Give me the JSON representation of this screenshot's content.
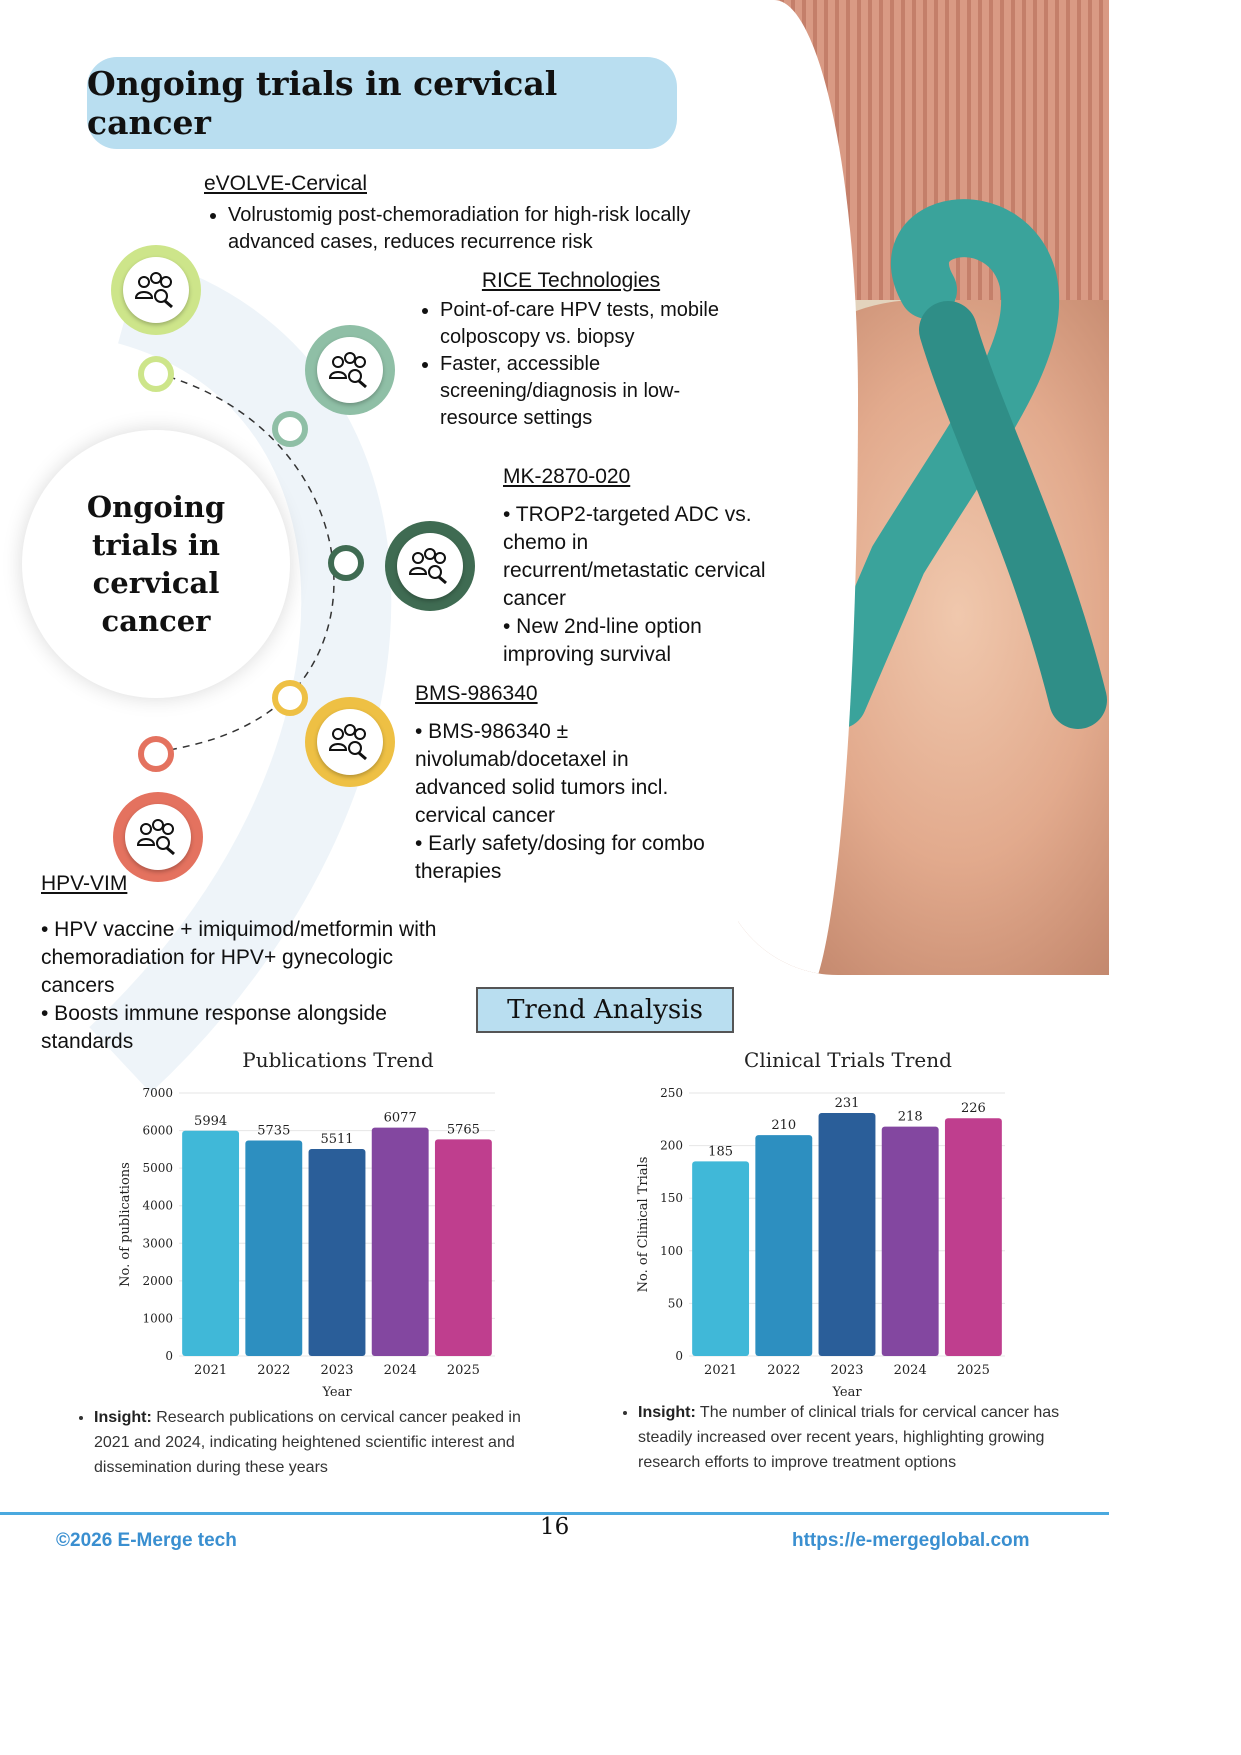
{
  "header": {
    "title": "Ongoing trials in cervical cancer"
  },
  "center": {
    "label": "Ongoing trials in cervical cancer"
  },
  "trials": {
    "evolve": {
      "name": "eVOLVE-Cervical",
      "bullets": [
        "Volrustomig post-chemoradiation for high-risk locally advanced cases, reduces recurrence risk"
      ]
    },
    "rice": {
      "name": "RICE Technologies",
      "bullets": [
        "Point-of-care HPV tests, mobile colposcopy vs. biopsy",
        "Faster, accessible screening/diagnosis in low-resource settings"
      ]
    },
    "mk": {
      "name": "MK-2870-020",
      "lines": [
        "• TROP2-targeted ADC vs. chemo in recurrent/metastatic cervical cancer",
        "• New 2nd-line option improving survival"
      ]
    },
    "bms": {
      "name": "BMS-986340",
      "lines": [
        "• BMS-986340 ± nivolumab/docetaxel in advanced solid tumors incl. cervical cancer",
        "• Early safety/dosing for combo therapies"
      ]
    },
    "hpv": {
      "name": "HPV-VIM",
      "lines": [
        "• HPV vaccine + imiquimod/metformin with chemoradiation for HPV+ gynecologic cancers",
        "• Boosts immune response alongside standards"
      ]
    }
  },
  "icons": {
    "trial": "people-search-icon"
  },
  "trend": {
    "title": "Trend Analysis"
  },
  "chart_data": [
    {
      "type": "bar",
      "title": "Publications Trend",
      "xlabel": "Year",
      "ylabel": "No. of publications",
      "categories": [
        "2021",
        "2022",
        "2023",
        "2024",
        "2025"
      ],
      "values": [
        5994,
        5735,
        5511,
        6077,
        5765
      ],
      "ylim": [
        0,
        7000
      ],
      "yticks": [
        0,
        1000,
        2000,
        3000,
        4000,
        5000,
        6000,
        7000
      ],
      "colors": [
        "#40b8d8",
        "#2d8fc0",
        "#2a5e99",
        "#8347a0",
        "#bf3e8e"
      ],
      "grid": true
    },
    {
      "type": "bar",
      "title": "Clinical Trials Trend",
      "xlabel": "Year",
      "ylabel": "No. of Clinical Trials",
      "categories": [
        "2021",
        "2022",
        "2023",
        "2024",
        "2025"
      ],
      "values": [
        185,
        210,
        231,
        218,
        226
      ],
      "ylim": [
        0,
        250
      ],
      "yticks": [
        0,
        50,
        100,
        150,
        200,
        250
      ],
      "colors": [
        "#40b8d8",
        "#2d8fc0",
        "#2a5e99",
        "#8347a0",
        "#bf3e8e"
      ],
      "grid": true
    }
  ],
  "insights": {
    "left": {
      "label": "Insight:",
      "text": " Research publications on cervical cancer peaked in 2021 and 2024, indicating heightened scientific interest and dissemination during these years"
    },
    "right": {
      "label": "Insight:",
      "text": " The number of clinical trials for cervical cancer has steadily increased over recent years, highlighting growing research efforts to improve treatment options"
    }
  },
  "footer": {
    "copyright": "©2026 E-Merge tech",
    "page": "16",
    "url": "https://e-mergeglobal.com"
  },
  "colors": {
    "accent_blue": "#4aa9df",
    "pill": "#b9def0",
    "ring1": "#cde58a",
    "ring2": "#8fbfa6",
    "ring3": "#3f6b52",
    "ring4": "#eec044",
    "ring5": "#e4725f"
  }
}
